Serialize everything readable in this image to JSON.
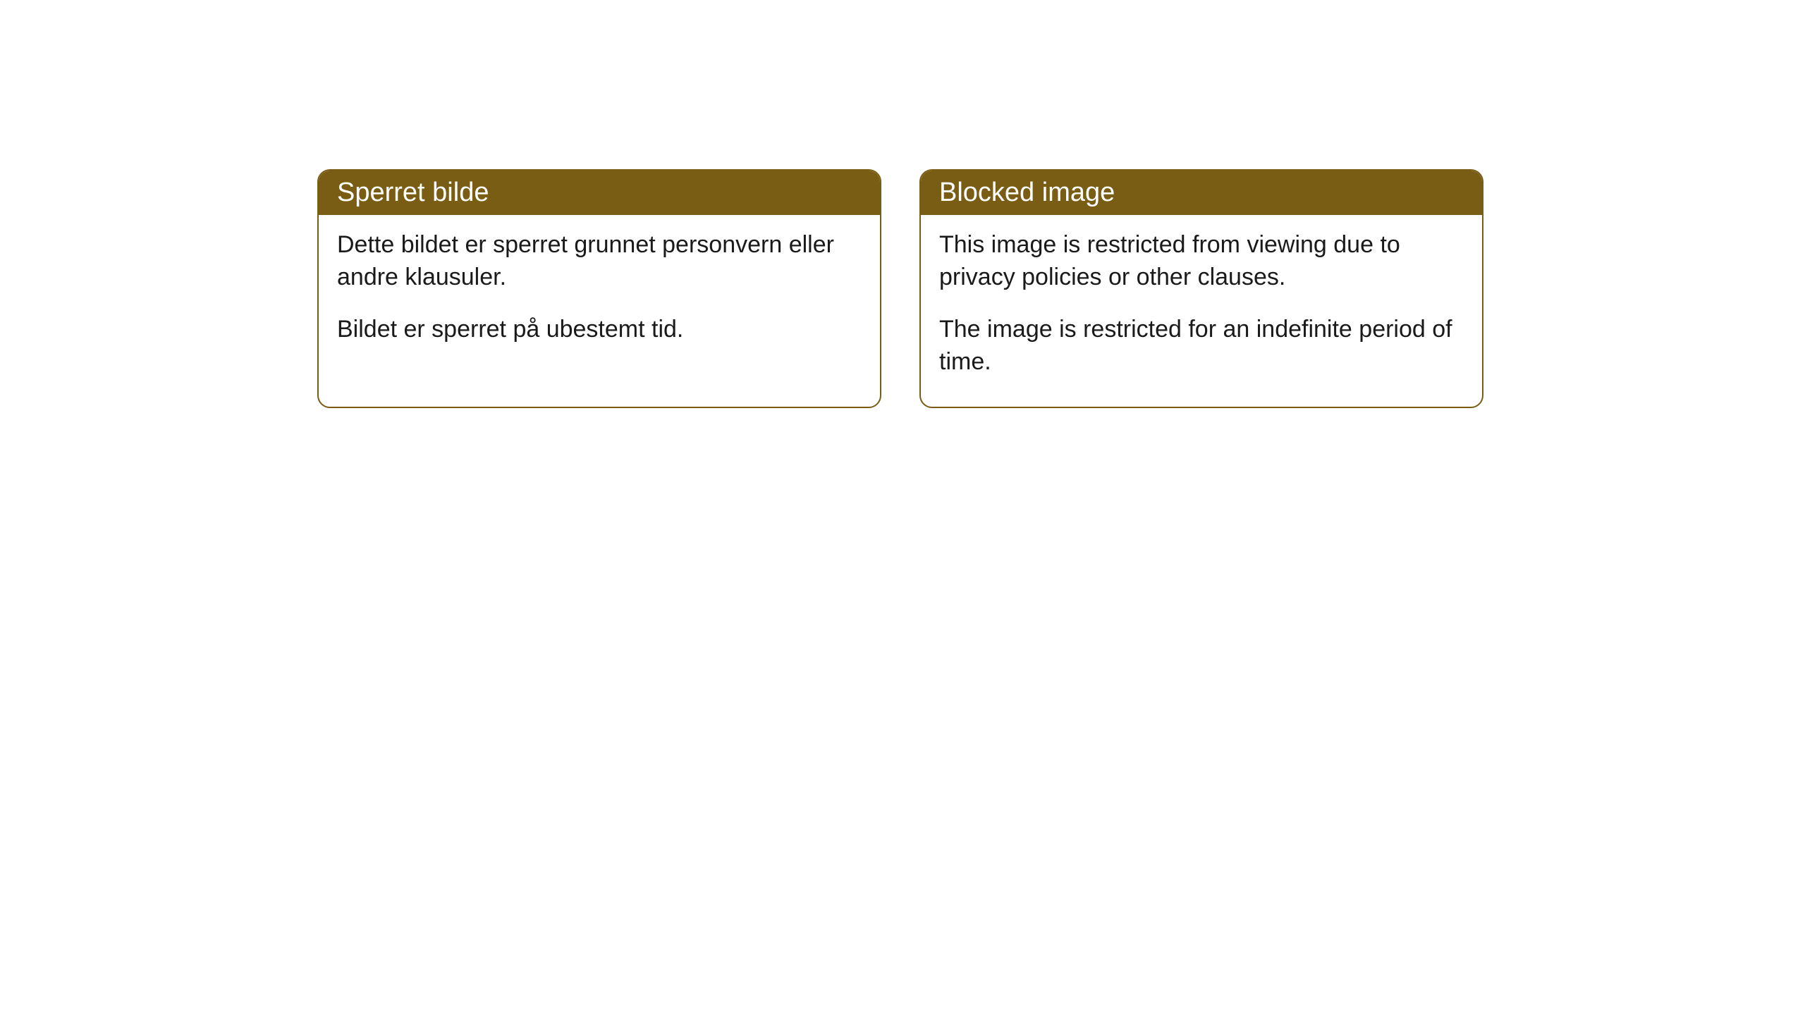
{
  "cards": [
    {
      "title": "Sperret bilde",
      "paragraph1": "Dette bildet er sperret grunnet personvern eller andre klausuler.",
      "paragraph2": "Bildet er sperret på ubestemt tid."
    },
    {
      "title": "Blocked image",
      "paragraph1": "This image is restricted from viewing due to privacy policies or other clauses.",
      "paragraph2": "The image is restricted for an indefinite period of time."
    }
  ],
  "styling": {
    "header_background": "#7a5d14",
    "header_text_color": "#ffffff",
    "border_color": "#7a5d14",
    "body_background": "#ffffff",
    "body_text_color": "#1a1a1a",
    "border_radius": 18,
    "title_fontsize": 38,
    "body_fontsize": 34
  }
}
